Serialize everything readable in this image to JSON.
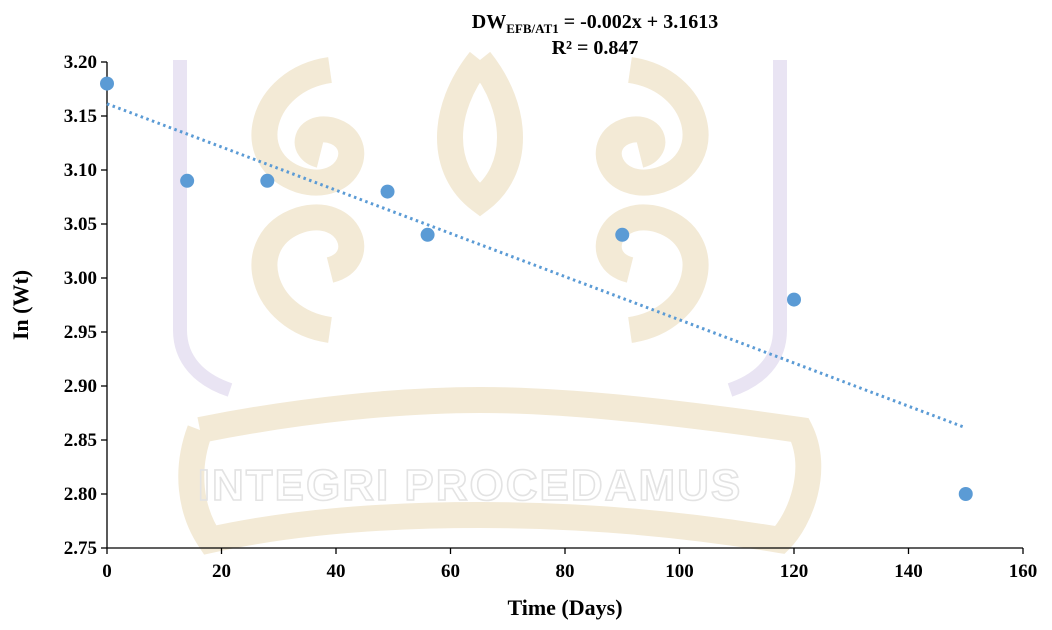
{
  "chart_data": {
    "type": "scatter",
    "xlabel": "Time (Days)",
    "ylabel": "In (Wt)",
    "xlim": [
      0,
      160
    ],
    "ylim": [
      2.75,
      3.2
    ],
    "x_ticks": [
      "0",
      "20",
      "40",
      "60",
      "80",
      "100",
      "120",
      "140",
      "160"
    ],
    "y_ticks": [
      "2.75",
      "2.80",
      "2.85",
      "2.90",
      "2.95",
      "3.00",
      "3.05",
      "3.10",
      "3.15",
      "3.20"
    ],
    "x_tick_values": [
      0,
      20,
      40,
      60,
      80,
      100,
      120,
      140,
      160
    ],
    "y_tick_values": [
      2.75,
      2.8,
      2.85,
      2.9,
      2.95,
      3.0,
      3.05,
      3.1,
      3.15,
      3.2
    ],
    "points": [
      {
        "x": 0,
        "y": 3.18
      },
      {
        "x": 14,
        "y": 3.09
      },
      {
        "x": 28,
        "y": 3.09
      },
      {
        "x": 49,
        "y": 3.08
      },
      {
        "x": 56,
        "y": 3.04
      },
      {
        "x": 90,
        "y": 3.04
      },
      {
        "x": 120,
        "y": 2.98
      },
      {
        "x": 150,
        "y": 2.8
      }
    ],
    "point_color": "#5b9bd5",
    "trendline": {
      "type": "linear",
      "slope": -0.002,
      "intercept": 3.1613,
      "x_range": [
        0,
        150
      ],
      "style": "dotted",
      "color": "#5b9bd5"
    },
    "equation": {
      "prefix": "DW",
      "subscript": "EFB/AT1",
      "suffix": " = -0.002x + 3.1613",
      "r2": "R² = 0.847"
    },
    "grid": false,
    "legend": "none",
    "watermark": {
      "text": "INTEGRI PROCEDAMUS",
      "kind": "university-seal"
    }
  }
}
